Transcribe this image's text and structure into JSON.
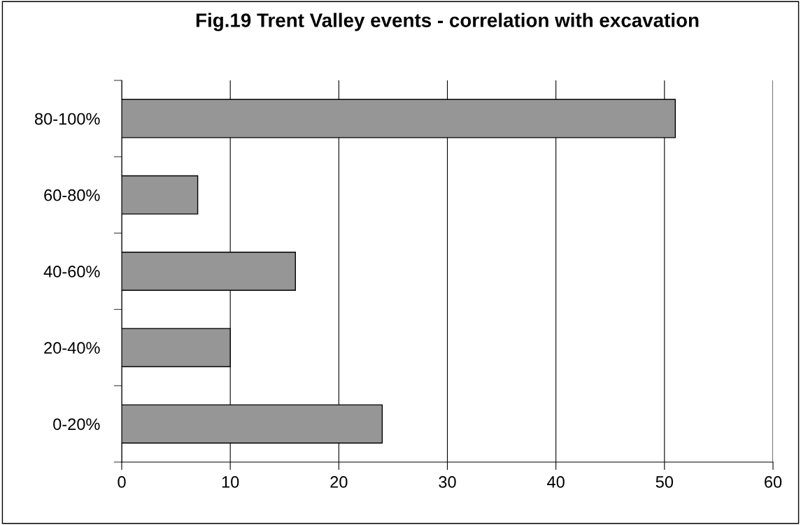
{
  "chart_data": {
    "type": "bar",
    "orientation": "horizontal",
    "title": "Fig.19 Trent Valley events - correlation with excavation",
    "categories": [
      "80-100%",
      "60-80%",
      "40-60%",
      "20-40%",
      "0-20%"
    ],
    "values": [
      51,
      7,
      16,
      10,
      24
    ],
    "color": "#969696",
    "xlim": [
      0,
      60
    ],
    "xticks": [
      0,
      10,
      20,
      30,
      40,
      50,
      60
    ],
    "grid": "x",
    "legend": false
  }
}
